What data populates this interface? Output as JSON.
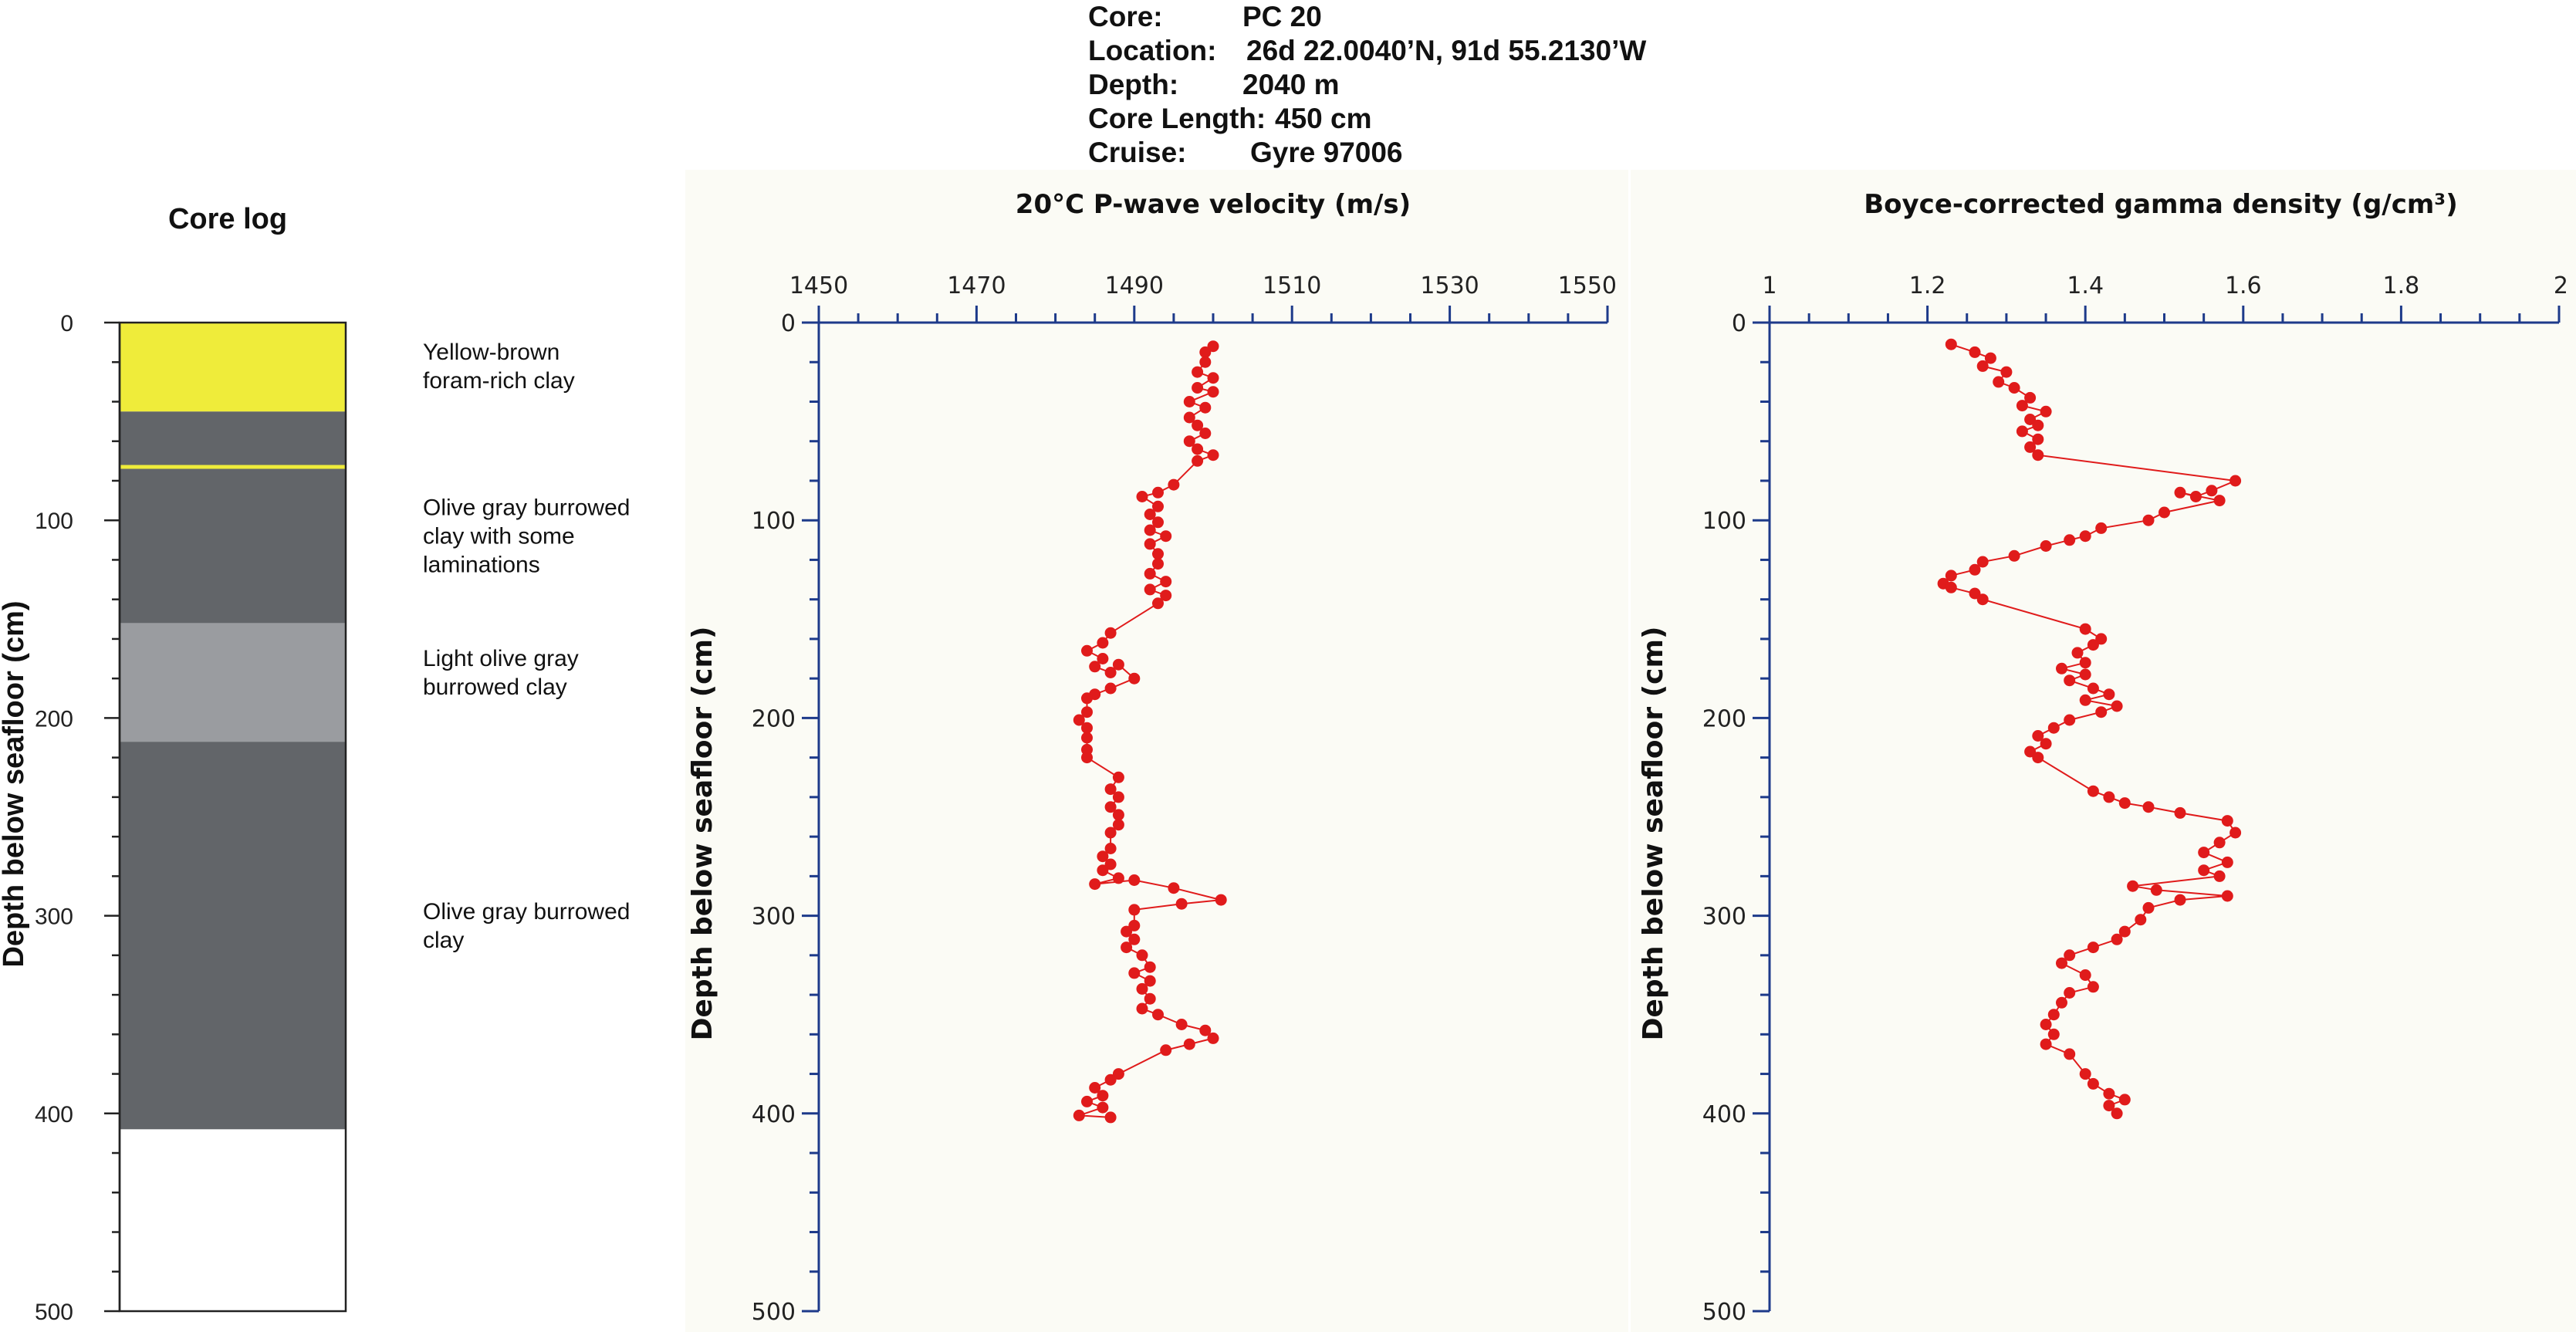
{
  "header": {
    "rows": [
      {
        "label": "Core:",
        "value": "PC 20"
      },
      {
        "label": "Location:",
        "value": "26d 22.0040’N, 91d 55.2130’W"
      },
      {
        "label": "Depth:",
        "value": "2040 m"
      },
      {
        "label": "Core Length:",
        "value": "450 cm"
      },
      {
        "label": "Cruise:",
        "value": "Gyre 97006"
      }
    ]
  },
  "colors": {
    "series": "#e01b1b",
    "axis": "#1d3a8a",
    "yellow_unit": "#efec3a",
    "dark_gray_unit": "#626569",
    "light_gray_unit": "#9a9ca0",
    "panel_bg": "#fbfbf5"
  },
  "chart_data": [
    {
      "type": "table",
      "title": "Core log",
      "ylabel": "Depth below seafloor (cm)",
      "ylim": [
        0,
        500
      ],
      "yticks": [
        "0",
        "100",
        "200",
        "300",
        "400",
        "500"
      ],
      "units": [
        {
          "top": 0,
          "bottom": 45,
          "color": "#efec3a",
          "label": [
            "Yellow-brown",
            "foram-rich clay"
          ]
        },
        {
          "top": 45,
          "bottom": 152,
          "color": "#626569",
          "label": [
            "Olive gray burrowed",
            "clay with some",
            "laminations"
          ],
          "label_depth": 108
        },
        {
          "top": 152,
          "bottom": 212,
          "color": "#9a9ca0",
          "label": [
            "Light olive gray",
            "burrowed clay"
          ],
          "label_depth": 177
        },
        {
          "top": 212,
          "bottom": 408,
          "color": "#626569",
          "label": [
            "Olive gray burrowed",
            "clay"
          ],
          "label_depth": 305
        }
      ],
      "yellow_lamina_depth": 73,
      "label_depths": [
        22,
        108,
        177,
        305
      ]
    },
    {
      "type": "line",
      "title": "20°C P-wave velocity (m/s)",
      "ylabel": "Depth below seafloor (cm)",
      "xlim": [
        1450,
        1550
      ],
      "ylim": [
        0,
        500
      ],
      "xticks": [
        "1450",
        "1470",
        "1490",
        "1510",
        "1530",
        "1550"
      ],
      "yticks": [
        "0",
        "100",
        "200",
        "300",
        "400",
        "500"
      ],
      "series": [
        {
          "points": [
            [
              1500,
              12
            ],
            [
              1499,
              15
            ],
            [
              1499,
              20
            ],
            [
              1498,
              25
            ],
            [
              1500,
              28
            ],
            [
              1498,
              33
            ],
            [
              1500,
              35
            ],
            [
              1497,
              40
            ],
            [
              1499,
              43
            ],
            [
              1497,
              48
            ],
            [
              1498,
              52
            ],
            [
              1499,
              56
            ],
            [
              1497,
              60
            ],
            [
              1498,
              64
            ],
            [
              1500,
              67
            ],
            [
              1498,
              70
            ],
            [
              1495,
              82
            ],
            [
              1493,
              86
            ],
            [
              1491,
              88
            ],
            [
              1493,
              93
            ],
            [
              1492,
              97
            ],
            [
              1493,
              101
            ],
            [
              1492,
              105
            ],
            [
              1494,
              108
            ],
            [
              1492,
              112
            ],
            [
              1493,
              117
            ],
            [
              1493,
              122
            ],
            [
              1492,
              127
            ],
            [
              1494,
              131
            ],
            [
              1492,
              135
            ],
            [
              1494,
              138
            ],
            [
              1493,
              142
            ],
            [
              1487,
              157
            ],
            [
              1486,
              162
            ],
            [
              1484,
              166
            ],
            [
              1486,
              170
            ],
            [
              1485,
              174
            ],
            [
              1487,
              177
            ],
            [
              1488,
              173
            ],
            [
              1490,
              180
            ],
            [
              1487,
              185
            ],
            [
              1485,
              188
            ],
            [
              1484,
              190
            ],
            [
              1484,
              197
            ],
            [
              1483,
              201
            ],
            [
              1484,
              205
            ],
            [
              1484,
              210
            ],
            [
              1484,
              216
            ],
            [
              1484,
              220
            ],
            [
              1488,
              230
            ],
            [
              1487,
              236
            ],
            [
              1488,
              240
            ],
            [
              1487,
              245
            ],
            [
              1488,
              249
            ],
            [
              1488,
              254
            ],
            [
              1487,
              258
            ],
            [
              1487,
              266
            ],
            [
              1486,
              270
            ],
            [
              1487,
              274
            ],
            [
              1486,
              277
            ],
            [
              1488,
              281
            ],
            [
              1485,
              284
            ],
            [
              1490,
              282
            ],
            [
              1495,
              286
            ],
            [
              1501,
              292
            ],
            [
              1496,
              294
            ],
            [
              1490,
              297
            ],
            [
              1490,
              305
            ],
            [
              1489,
              308
            ],
            [
              1490,
              312
            ],
            [
              1489,
              316
            ],
            [
              1491,
              320
            ],
            [
              1492,
              326
            ],
            [
              1490,
              329
            ],
            [
              1492,
              333
            ],
            [
              1491,
              337
            ],
            [
              1492,
              342
            ],
            [
              1491,
              347
            ],
            [
              1493,
              350
            ],
            [
              1496,
              355
            ],
            [
              1499,
              358
            ],
            [
              1500,
              362
            ],
            [
              1497,
              365
            ],
            [
              1494,
              368
            ],
            [
              1488,
              380
            ],
            [
              1487,
              383
            ],
            [
              1485,
              387
            ],
            [
              1486,
              391
            ],
            [
              1484,
              394
            ],
            [
              1486,
              397
            ],
            [
              1483,
              401
            ],
            [
              1487,
              402
            ]
          ]
        }
      ]
    },
    {
      "type": "line",
      "title": "Boyce-corrected gamma density (g/cm³)",
      "ylabel": "Depth below seafloor (cm)",
      "xlim": [
        1,
        2
      ],
      "ylim": [
        0,
        500
      ],
      "xticks": [
        "1",
        "1.2",
        "1.4",
        "1.6",
        "1.8",
        "2"
      ],
      "yticks": [
        "0",
        "100",
        "200",
        "300",
        "400",
        "500"
      ],
      "series": [
        {
          "points": [
            [
              1.23,
              11
            ],
            [
              1.26,
              15
            ],
            [
              1.28,
              18
            ],
            [
              1.27,
              22
            ],
            [
              1.3,
              25
            ],
            [
              1.29,
              30
            ],
            [
              1.31,
              33
            ],
            [
              1.33,
              38
            ],
            [
              1.32,
              42
            ],
            [
              1.35,
              45
            ],
            [
              1.33,
              49
            ],
            [
              1.34,
              52
            ],
            [
              1.32,
              55
            ],
            [
              1.34,
              59
            ],
            [
              1.33,
              63
            ],
            [
              1.34,
              67
            ],
            [
              1.59,
              80
            ],
            [
              1.56,
              85
            ],
            [
              1.54,
              88
            ],
            [
              1.52,
              86
            ],
            [
              1.57,
              90
            ],
            [
              1.5,
              96
            ],
            [
              1.48,
              100
            ],
            [
              1.42,
              104
            ],
            [
              1.4,
              108
            ],
            [
              1.38,
              110
            ],
            [
              1.35,
              113
            ],
            [
              1.31,
              118
            ],
            [
              1.27,
              121
            ],
            [
              1.26,
              125
            ],
            [
              1.23,
              128
            ],
            [
              1.22,
              132
            ],
            [
              1.23,
              134
            ],
            [
              1.26,
              137
            ],
            [
              1.27,
              140
            ],
            [
              1.4,
              155
            ],
            [
              1.42,
              160
            ],
            [
              1.41,
              163
            ],
            [
              1.39,
              167
            ],
            [
              1.4,
              172
            ],
            [
              1.37,
              175
            ],
            [
              1.4,
              178
            ],
            [
              1.38,
              181
            ],
            [
              1.41,
              185
            ],
            [
              1.43,
              188
            ],
            [
              1.4,
              191
            ],
            [
              1.44,
              194
            ],
            [
              1.42,
              197
            ],
            [
              1.38,
              201
            ],
            [
              1.36,
              205
            ],
            [
              1.34,
              209
            ],
            [
              1.35,
              213
            ],
            [
              1.33,
              217
            ],
            [
              1.34,
              220
            ],
            [
              1.41,
              237
            ],
            [
              1.43,
              240
            ],
            [
              1.45,
              243
            ],
            [
              1.48,
              245
            ],
            [
              1.52,
              248
            ],
            [
              1.58,
              252
            ],
            [
              1.59,
              258
            ],
            [
              1.57,
              263
            ],
            [
              1.55,
              268
            ],
            [
              1.58,
              273
            ],
            [
              1.55,
              277
            ],
            [
              1.57,
              280
            ],
            [
              1.46,
              285
            ],
            [
              1.49,
              287
            ],
            [
              1.58,
              290
            ],
            [
              1.52,
              292
            ],
            [
              1.48,
              296
            ],
            [
              1.47,
              302
            ],
            [
              1.45,
              308
            ],
            [
              1.44,
              312
            ],
            [
              1.41,
              316
            ],
            [
              1.38,
              320
            ],
            [
              1.37,
              324
            ],
            [
              1.4,
              330
            ],
            [
              1.41,
              336
            ],
            [
              1.38,
              339
            ],
            [
              1.37,
              344
            ],
            [
              1.36,
              350
            ],
            [
              1.35,
              355
            ],
            [
              1.36,
              360
            ],
            [
              1.35,
              365
            ],
            [
              1.38,
              370
            ],
            [
              1.4,
              380
            ],
            [
              1.41,
              385
            ],
            [
              1.43,
              390
            ],
            [
              1.45,
              393
            ],
            [
              1.43,
              396
            ],
            [
              1.44,
              400
            ]
          ]
        }
      ]
    }
  ]
}
